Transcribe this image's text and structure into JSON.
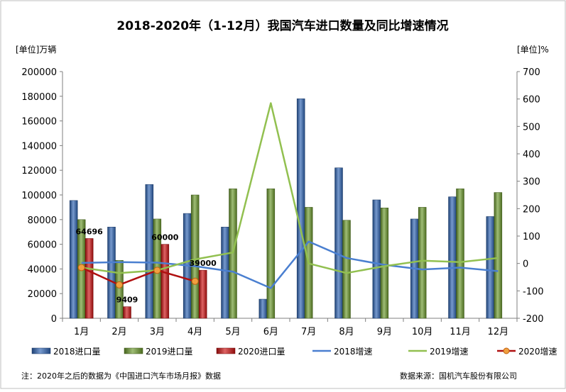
{
  "chart_data": {
    "type": "bar",
    "title": "2018-2020年（1-12月）我国汽车进口数量及同比增速情况",
    "ylabel_left": "[单位]万辆",
    "ylabel_right": "[单位]%",
    "categories": [
      "1月",
      "2月",
      "3月",
      "4月",
      "5月",
      "6月",
      "7月",
      "8月",
      "9月",
      "10月",
      "11月",
      "12月"
    ],
    "y_left": {
      "min": 0,
      "max": 200000,
      "step": 20000
    },
    "y_right": {
      "min": -200,
      "max": 700,
      "step": 100
    },
    "y_left_ticks": [
      "0",
      "20000",
      "40000",
      "60000",
      "80000",
      "100000",
      "120000",
      "140000",
      "160000",
      "180000",
      "200000"
    ],
    "y_right_ticks": [
      "-200",
      "-100",
      "0",
      "100",
      "200",
      "300",
      "400",
      "500",
      "600",
      "700"
    ],
    "bar_series": [
      {
        "name": "2018进口量",
        "color": "#2e64b4",
        "values": [
          95500,
          74000,
          108500,
          85000,
          74000,
          15500,
          178000,
          122000,
          96000,
          80500,
          98500,
          82500
        ]
      },
      {
        "name": "2019进口量",
        "color": "#6c9a2c",
        "values": [
          80000,
          47000,
          80500,
          100000,
          105000,
          105000,
          90000,
          79500,
          89500,
          90000,
          105000,
          102000
        ]
      },
      {
        "name": "2020进口量",
        "color": "#cc1111",
        "values": [
          64696,
          9409,
          60000,
          39000,
          null,
          null,
          null,
          null,
          null,
          null,
          null,
          null
        ]
      }
    ],
    "line_series": [
      {
        "name": "2018增速",
        "color": "#4a7fd0",
        "values": [
          2,
          5,
          3,
          -10,
          -30,
          -90,
          80,
          20,
          -5,
          -22,
          -15,
          -28
        ]
      },
      {
        "name": "2019增速",
        "color": "#92c050",
        "values": [
          -15,
          -35,
          -25,
          15,
          40,
          585,
          0,
          -35,
          -10,
          10,
          5,
          20
        ]
      },
      {
        "name": "2020增速",
        "color": "#b01010",
        "values": [
          -15,
          -78,
          -25,
          -65,
          null,
          null,
          null,
          null,
          null,
          null,
          null,
          null
        ]
      }
    ],
    "data_labels": [
      {
        "series": 2,
        "index": 0,
        "text": "64696"
      },
      {
        "series": 2,
        "index": 1,
        "text": "9409"
      },
      {
        "series": 2,
        "index": 2,
        "text": "60000"
      },
      {
        "series": 2,
        "index": 3,
        "text": "39000"
      }
    ],
    "grid": false,
    "legend_position": "bottom"
  },
  "footer": {
    "note": "注：2020年之后的数据为《中国进口汽车市场月报》数据",
    "source": "数据来源：国机汽车股份有限公司"
  }
}
